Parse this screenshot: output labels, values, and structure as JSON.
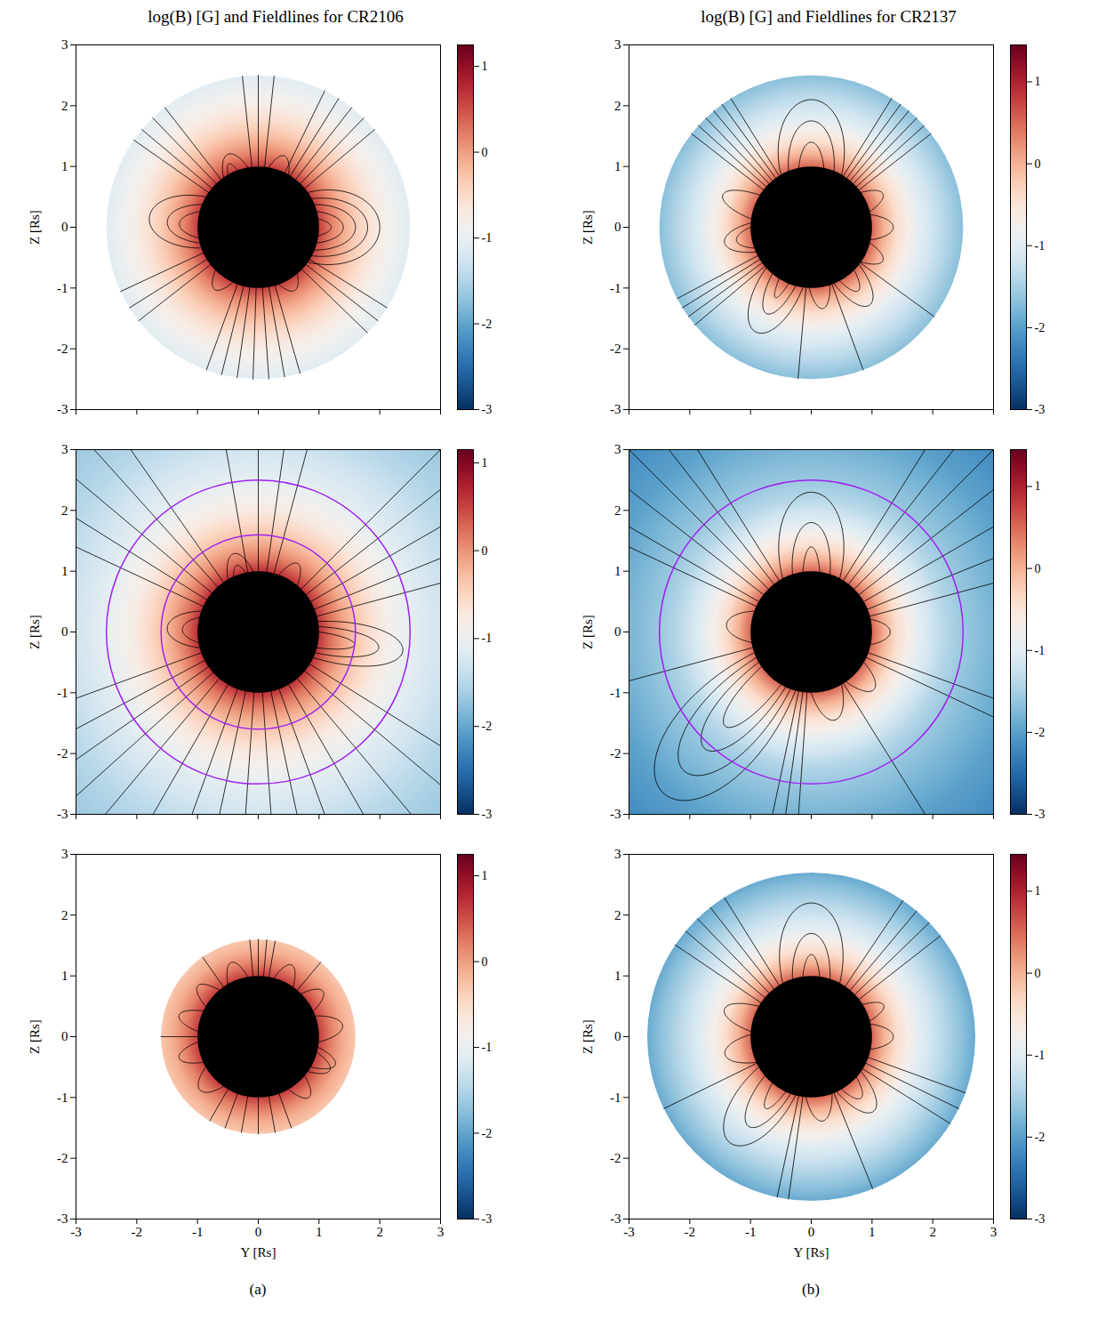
{
  "chart_data": [
    {
      "type": "fieldlines",
      "title": "log(B) [G] and Fieldlines for CR2106",
      "ylabel": "Z [Rs]",
      "xlim": [
        -3,
        3
      ],
      "ylim": [
        -3,
        3
      ],
      "xticks": [
        -3,
        -2,
        -1,
        0,
        1,
        2,
        3
      ],
      "yticks": [
        -3,
        -2,
        -1,
        0,
        1,
        2,
        3
      ],
      "tick_labels": "y",
      "sun_radius": 1,
      "logB": {
        "r": [
          1,
          1.2,
          1.4,
          1.6,
          1.8,
          2,
          2.2,
          2.5
        ],
        "values": [
          0.6,
          0.2,
          -0.1,
          -0.35,
          -0.55,
          -0.75,
          -0.9,
          -1.1
        ]
      },
      "colorbar": {
        "lim": [
          -3,
          1.25
        ],
        "ticks": [
          -3,
          -2,
          -1,
          0,
          1
        ]
      },
      "fieldlines": {
        "color": "#000000",
        "open": [
          40,
          46,
          52,
          58,
          64,
          84,
          90,
          96,
          128,
          134,
          140,
          145,
          205,
          212,
          218,
          250,
          256,
          262,
          268,
          274,
          280,
          286,
          316,
          322,
          328
        ],
        "closed": [
          [
            -35,
            35,
            2.0
          ],
          [
            -28,
            28,
            1.8
          ],
          [
            -22,
            22,
            1.6
          ],
          [
            -15,
            15,
            1.4
          ],
          [
            -8,
            8,
            1.2
          ],
          [
            150,
            200,
            1.8
          ],
          [
            158,
            195,
            1.5
          ],
          [
            165,
            190,
            1.3
          ],
          [
            60,
            80,
            1.25
          ],
          [
            100,
            125,
            1.3
          ],
          [
            110,
            120,
            1.15
          ],
          [
            225,
            245,
            1.25
          ],
          [
            290,
            310,
            1.2
          ]
        ]
      }
    },
    {
      "type": "fieldlines",
      "ylabel": "Z [Rs]",
      "xlim": [
        -3,
        3
      ],
      "ylim": [
        -3,
        3
      ],
      "xticks": [
        -3,
        -2,
        -1,
        0,
        1,
        2,
        3
      ],
      "yticks": [
        -3,
        -2,
        -1,
        0,
        1,
        2,
        3
      ],
      "tick_labels": "y",
      "sun_radius": 1,
      "boundary_circles": {
        "radii": [
          1.6,
          2.5
        ],
        "color": "#a020f0"
      },
      "logB": {
        "r": [
          1,
          1.2,
          1.4,
          1.6,
          1.8,
          2,
          2.2,
          2.5,
          3,
          3.5,
          4.3
        ],
        "values": [
          0.6,
          0.2,
          -0.1,
          -0.35,
          -0.55,
          -0.75,
          -0.9,
          -1.1,
          -1.3,
          -1.5,
          -1.7
        ]
      },
      "colorbar": {
        "lim": [
          -3,
          1.15
        ],
        "ticks": [
          -3,
          -2,
          -1,
          0,
          1
        ]
      },
      "fieldlines": {
        "color": "#000000",
        "open": [
          15,
          22,
          30,
          38,
          45,
          75,
          82,
          90,
          100,
          125,
          132,
          140,
          148,
          155,
          200,
          208,
          215,
          222,
          230,
          240,
          250,
          258,
          266,
          274,
          282,
          290,
          300,
          310,
          320,
          328
        ],
        "closed": [
          [
            -25,
            10,
            2.4
          ],
          [
            -20,
            5,
            2.0
          ],
          [
            -15,
            0,
            1.6
          ],
          [
            160,
            195,
            1.5
          ],
          [
            166,
            190,
            1.25
          ],
          [
            50,
            70,
            1.3
          ],
          [
            95,
            120,
            1.35
          ],
          [
            102,
            114,
            1.15
          ]
        ]
      }
    },
    {
      "type": "fieldlines",
      "xlabel": "Y [Rs]",
      "ylabel": "Z [Rs]",
      "caption": "(a)",
      "xlim": [
        -3,
        3
      ],
      "ylim": [
        -3,
        3
      ],
      "xticks": [
        -3,
        -2,
        -1,
        0,
        1,
        2,
        3
      ],
      "yticks": [
        -3,
        -2,
        -1,
        0,
        1,
        2,
        3
      ],
      "sun_radius": 1,
      "logB": {
        "r": [
          1,
          1.2,
          1.4,
          1.6
        ],
        "values": [
          0.6,
          0.2,
          -0.1,
          -0.3
        ]
      },
      "colorbar": {
        "lim": [
          -3,
          1.25
        ],
        "ticks": [
          -3,
          -2,
          -1,
          0,
          1
        ]
      },
      "fieldlines": {
        "color": "#000000",
        "open": [
          50,
          80,
          85,
          90,
          95,
          125,
          180,
          240,
          250,
          260,
          270,
          280,
          290
        ],
        "closed": [
          [
            -30,
            -10,
            1.35
          ],
          [
            -5,
            20,
            1.4
          ],
          [
            25,
            45,
            1.3
          ],
          [
            55,
            75,
            1.3
          ],
          [
            100,
            120,
            1.3
          ],
          [
            130,
            150,
            1.3
          ],
          [
            155,
            175,
            1.35
          ],
          [
            185,
            205,
            1.35
          ],
          [
            210,
            235,
            1.3
          ],
          [
            300,
            320,
            1.3
          ],
          [
            325,
            345,
            1.3
          ]
        ]
      }
    },
    {
      "type": "fieldlines",
      "title": "log(B) [G] and Fieldlines for CR2137",
      "ylabel": "Z [Rs]",
      "xlim": [
        -3,
        3
      ],
      "ylim": [
        -3,
        3
      ],
      "xticks": [
        -3,
        -2,
        -1,
        0,
        1,
        2,
        3
      ],
      "yticks": [
        -3,
        -2,
        -1,
        0,
        1,
        2,
        3
      ],
      "tick_labels": "y",
      "sun_radius": 1,
      "logB": {
        "r": [
          1,
          1.2,
          1.4,
          1.6,
          1.8,
          2,
          2.2,
          2.5
        ],
        "values": [
          0.5,
          0,
          -0.4,
          -0.7,
          -1,
          -1.2,
          -1.4,
          -1.7
        ]
      },
      "colorbar": {
        "lim": [
          -3,
          1.45
        ],
        "ticks": [
          -3,
          -2,
          -1,
          0,
          1
        ]
      },
      "fieldlines": {
        "color": "#000000",
        "open": [
          38,
          42,
          46,
          50,
          54,
          58,
          122,
          126,
          130,
          134,
          138,
          142,
          208,
          212,
          216,
          220,
          265,
          290,
          324
        ],
        "closed": [
          [
            60,
            120,
            2.1
          ],
          [
            68,
            112,
            1.75
          ],
          [
            78,
            102,
            1.4
          ],
          [
            148,
            172,
            1.55
          ],
          [
            176,
            204,
            1.45
          ],
          [
            180,
            200,
            1.25
          ],
          [
            -12,
            12,
            1.35
          ],
          [
            15,
            35,
            1.3
          ],
          [
            -35,
            -15,
            1.3
          ],
          [
            222,
            262,
            1.95
          ],
          [
            230,
            255,
            1.6
          ],
          [
            238,
            248,
            1.3
          ],
          [
            268,
            288,
            1.35
          ],
          [
            292,
            322,
            1.6
          ],
          [
            298,
            315,
            1.3
          ]
        ]
      }
    },
    {
      "type": "fieldlines",
      "ylabel": "Z [Rs]",
      "xlim": [
        -3,
        3
      ],
      "ylim": [
        -3,
        3
      ],
      "xticks": [
        -3,
        -2,
        -1,
        0,
        1,
        2,
        3
      ],
      "yticks": [
        -3,
        -2,
        -1,
        0,
        1,
        2,
        3
      ],
      "tick_labels": "y",
      "sun_radius": 1,
      "boundary_circles": {
        "radii": [
          2.5
        ],
        "color": "#a020f0"
      },
      "logB": {
        "r": [
          1,
          1.2,
          1.4,
          1.6,
          1.8,
          2,
          2.2,
          2.5,
          3,
          3.5,
          4.3
        ],
        "values": [
          0.5,
          0,
          -0.4,
          -0.7,
          -1,
          -1.2,
          -1.4,
          -1.6,
          -1.8,
          -2,
          -2.2
        ]
      },
      "colorbar": {
        "lim": [
          -3,
          1.45
        ],
        "ticks": [
          -3,
          -2,
          -1,
          0,
          1
        ]
      },
      "fieldlines": {
        "color": "#000000",
        "open": [
          15,
          22,
          30,
          38,
          45,
          52,
          58,
          122,
          128,
          135,
          142,
          150,
          155,
          195,
          258,
          262,
          266,
          302,
          335,
          340
        ],
        "closed": [
          [
            200,
            255,
            3.6
          ],
          [
            205,
            250,
            3.1
          ],
          [
            210,
            245,
            2.6
          ],
          [
            215,
            240,
            2.1
          ],
          [
            62,
            118,
            2.3
          ],
          [
            72,
            108,
            1.8
          ],
          [
            82,
            98,
            1.4
          ],
          [
            -12,
            12,
            1.3
          ],
          [
            160,
            190,
            1.4
          ],
          [
            270,
            300,
            1.5
          ],
          [
            305,
            330,
            1.4
          ]
        ]
      }
    },
    {
      "type": "fieldlines",
      "xlabel": "Y [Rs]",
      "ylabel": "Z [Rs]",
      "caption": "(b)",
      "xlim": [
        -3,
        3
      ],
      "ylim": [
        -3,
        3
      ],
      "xticks": [
        -3,
        -2,
        -1,
        0,
        1,
        2,
        3
      ],
      "yticks": [
        -3,
        -2,
        -1,
        0,
        1,
        2,
        3
      ],
      "sun_radius": 1,
      "logB": {
        "r": [
          1,
          1.2,
          1.4,
          1.6,
          1.8,
          2,
          2.2,
          2.5,
          2.7
        ],
        "values": [
          0.5,
          0,
          -0.4,
          -0.7,
          -1,
          -1.2,
          -1.4,
          -1.7,
          -1.9
        ]
      },
      "colorbar": {
        "lim": [
          -3,
          1.45
        ],
        "ticks": [
          -3,
          -2,
          -1,
          0,
          1
        ]
      },
      "fieldlines": {
        "color": "#000000",
        "open": [
          38,
          44,
          50,
          56,
          122,
          128,
          134,
          140,
          146,
          206,
          258,
          262,
          292,
          328,
          334,
          340
        ],
        "closed": [
          [
            62,
            118,
            2.2
          ],
          [
            72,
            108,
            1.7
          ],
          [
            82,
            98,
            1.35
          ],
          [
            150,
            175,
            1.5
          ],
          [
            178,
            205,
            1.45
          ],
          [
            -12,
            12,
            1.35
          ],
          [
            15,
            32,
            1.3
          ],
          [
            210,
            255,
            2.2
          ],
          [
            220,
            250,
            1.8
          ],
          [
            230,
            245,
            1.4
          ],
          [
            265,
            290,
            1.4
          ],
          [
            295,
            325,
            1.6
          ],
          [
            300,
            318,
            1.3
          ]
        ]
      }
    }
  ]
}
